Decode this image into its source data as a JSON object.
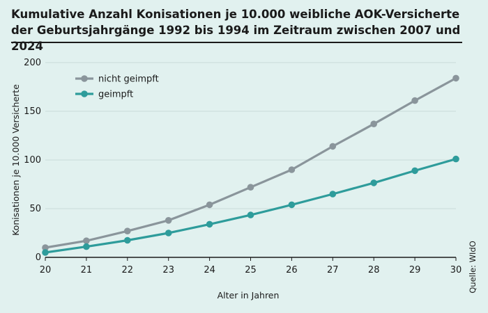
{
  "chart_data": {
    "type": "line",
    "title": "Kumulative Anzahl Konisationen je 10.000 weibliche AOK-Versicherte der Geburtsjahrgänge 1992 bis 1994 im Zeitraum zwischen 2007 und 2024",
    "xlabel": "Alter in Jahren",
    "ylabel": "Konisationen je 10.000 Versicherte",
    "x": [
      20,
      21,
      22,
      23,
      24,
      25,
      26,
      27,
      28,
      29,
      30
    ],
    "xlim": [
      20,
      30
    ],
    "ylim": [
      0,
      200
    ],
    "yticks": [
      0,
      50,
      100,
      150,
      200
    ],
    "legend_position": "top-left",
    "source": "Quelle: WIdO",
    "series": [
      {
        "name": "nicht geimpft",
        "color": "#8a959b",
        "values": [
          10,
          17,
          27,
          38,
          54,
          72,
          90,
          114,
          137,
          161,
          184
        ]
      },
      {
        "name": "geimpft",
        "color": "#2e9c9b",
        "values": [
          5,
          11,
          17.5,
          25,
          34,
          43.5,
          54,
          65,
          76.5,
          89,
          101
        ]
      }
    ]
  }
}
